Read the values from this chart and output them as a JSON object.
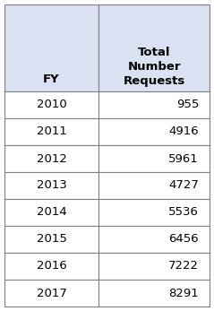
{
  "col1_header": "FY",
  "col2_header": "Total\nNumber\nRequests",
  "rows": [
    [
      "2010",
      "955"
    ],
    [
      "2011",
      "4916"
    ],
    [
      "2012",
      "5961"
    ],
    [
      "2013",
      "4727"
    ],
    [
      "2014",
      "5536"
    ],
    [
      "2015",
      "6456"
    ],
    [
      "2016",
      "7222"
    ],
    [
      "2017",
      "8291"
    ]
  ],
  "header_bg": "#dae1f2",
  "row_bg": "#ffffff",
  "border_color": "#7f7f7f",
  "text_color": "#000000",
  "header_fontsize": 9.5,
  "cell_fontsize": 9.5,
  "fig_width": 2.39,
  "fig_height": 3.47,
  "dpi": 100
}
